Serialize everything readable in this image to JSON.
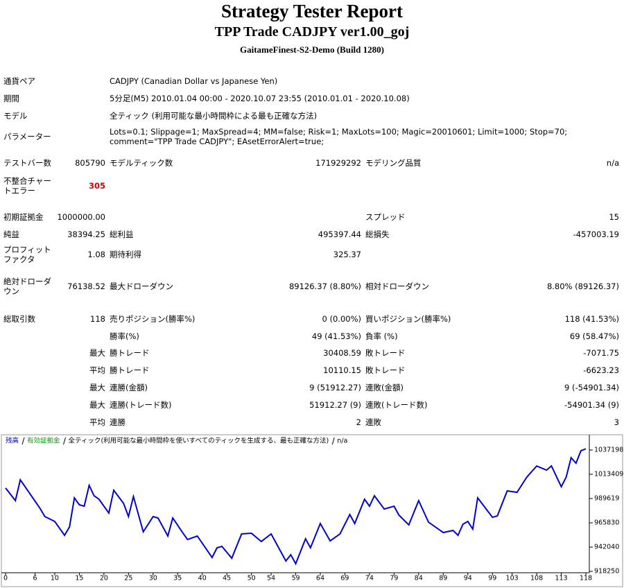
{
  "header": {
    "title": "Strategy Tester Report",
    "subtitle": "TPP Trade CADJPY ver1.00_goj",
    "server": "GaitameFinest-S2-Demo (Build 1280)"
  },
  "info": [
    {
      "label": "通貨ペア",
      "value": "CADJPY (Canadian Dollar vs Japanese Yen)"
    },
    {
      "label": "期間",
      "value": "5分足(M5) 2010.01.04 00:00 - 2020.10.07 23:55 (2010.01.01 - 2020.10.08)"
    },
    {
      "label": "モデル",
      "value": "全ティック (利用可能な最小時間枠による最も正確な方法)"
    },
    {
      "label": "パラメーター",
      "value": "Lots=0.1; Slippage=1; MaxSpread=4; MM=false; Risk=1; MaxLots=100; Magic=20010601; Limit=1000; Stop=70; comment=\"TPP Trade CADJPY\"; EAsetErrorAlert=true;"
    }
  ],
  "stats": {
    "rows": [
      [
        "テストバー数",
        "805790",
        "モデルティック数",
        "171929292",
        "モデリング品質",
        "n/a"
      ],
      [
        "不整合チャートエラー",
        "305",
        null,
        null,
        null,
        null
      ],
      [
        "初期証拠金",
        "1000000.00",
        null,
        null,
        "スプレッド",
        "15"
      ],
      [
        "純益",
        "38394.25",
        "総利益",
        "495397.44",
        "総損失",
        "-457003.19"
      ],
      [
        "プロフィットファクタ",
        "1.08",
        "期待利得",
        "325.37",
        null,
        null
      ],
      [
        "絶対ドローダウン",
        "76138.52",
        "最大ドローダウン",
        "89126.37 (8.80%)",
        "相対ドローダウン",
        "8.80% (89126.37)"
      ],
      [
        "総取引数",
        "118",
        "売りポジション(勝率%)",
        "0 (0.00%)",
        "買いポジション(勝率%)",
        "118 (41.53%)"
      ],
      [
        null,
        null,
        "勝率(%)",
        "49 (41.53%)",
        "負率 (%)",
        "69 (58.47%)"
      ],
      [
        null,
        "最大",
        "勝トレード",
        "30408.59",
        "敗トレード",
        "-7071.75"
      ],
      [
        null,
        "平均",
        "勝トレード",
        "10110.15",
        "敗トレード",
        "-6623.23"
      ],
      [
        null,
        "最大",
        "連勝(金額)",
        "9 (51912.27)",
        "連敗(金額)",
        "9 (-54901.34)"
      ],
      [
        null,
        "最大",
        "連勝(トレード数)",
        "51912.27 (9)",
        "連敗(トレード数)",
        "-54901.34 (9)"
      ],
      [
        null,
        "平均",
        "連勝",
        "2",
        "連敗",
        "3"
      ]
    ]
  },
  "chart_data": {
    "type": "line",
    "equity_label": "有効証拠金",
    "equity_color": "#00a000",
    "model_label": "全ティック(利用可能な最小時間枠を使いすべてのティックを生成する、最も正確な方法)",
    "quality_label": "n/a",
    "x": [
      0,
      2,
      3,
      7,
      8,
      10,
      12,
      13,
      14,
      15,
      16,
      17,
      18,
      19,
      21,
      22,
      24,
      25,
      26,
      28,
      30,
      31,
      33,
      34,
      36,
      37,
      39,
      42,
      43,
      44,
      46,
      48,
      50,
      52,
      54,
      57,
      58,
      59,
      61,
      62,
      64,
      66,
      68,
      70,
      71,
      73,
      74,
      75,
      77,
      79,
      80,
      82,
      84,
      86,
      89,
      91,
      92,
      93,
      94,
      95,
      96,
      99,
      100,
      102,
      104,
      106,
      108,
      110,
      111,
      113,
      114,
      115,
      116,
      117,
      118
    ],
    "series": [
      {
        "name": "残高",
        "color": "#0000cc",
        "values": [
          1000000,
          987600,
          1008000,
          980100,
          971950,
          967200,
          953600,
          961750,
          990300,
          983500,
          982150,
          1002550,
          992350,
          988950,
          975350,
          997800,
          984850,
          971950,
          991650,
          957000,
          971950,
          970600,
          952900,
          970600,
          956300,
          949500,
          952900,
          931850,
          941350,
          942700,
          931150,
          954950,
          955600,
          947500,
          954950,
          928450,
          934550,
          925750,
          950200,
          941350,
          965150,
          948150,
          954950,
          974000,
          965150,
          988950,
          982150,
          992350,
          979400,
          982150,
          973300,
          963800,
          987600,
          966500,
          956300,
          958350,
          953600,
          964450,
          967200,
          959700,
          990300,
          971250,
          972600,
          997100,
          995750,
          1010700,
          1021550,
          1017500,
          1021600,
          1001200,
          1010700,
          1029700,
          1024300,
          1036500,
          1038394
        ]
      }
    ],
    "xlim": [
      0,
      118
    ],
    "ylim": [
      916900,
      1040600
    ],
    "xticks": [
      0,
      6,
      10,
      15,
      20,
      25,
      30,
      35,
      40,
      45,
      50,
      54,
      59,
      64,
      69,
      74,
      79,
      84,
      89,
      94,
      99,
      103,
      108,
      113,
      118
    ],
    "yticks": [
      1037198,
      1013409,
      989619,
      965830,
      942040,
      918250
    ]
  }
}
